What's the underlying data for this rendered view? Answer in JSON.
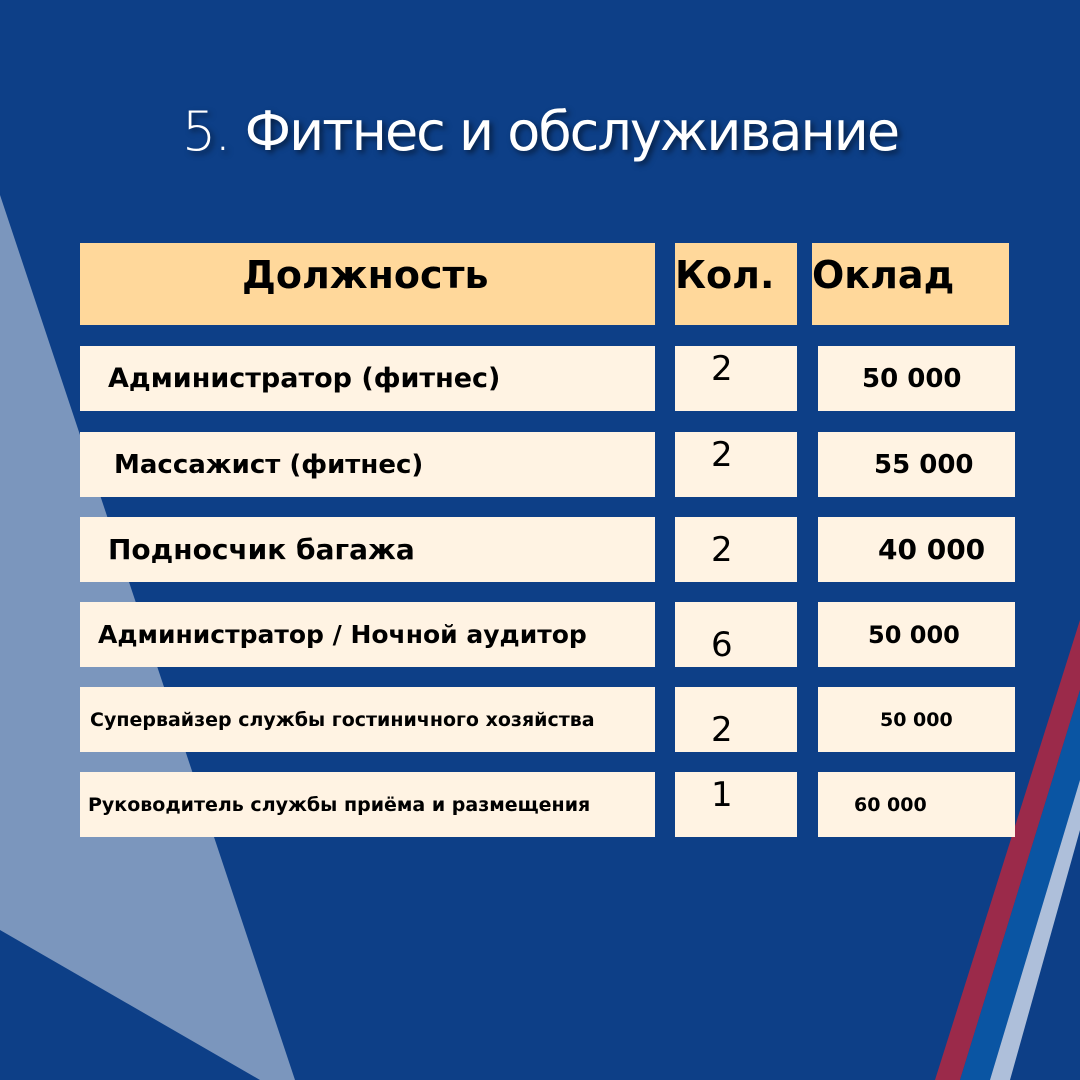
{
  "title": {
    "number": "5.",
    "text": "Фитнес и обслуживание"
  },
  "headers": {
    "position": "Должность",
    "count": "Кол.",
    "salary": "Оклад"
  },
  "rows": [
    {
      "position": "Администратор (фитнес)",
      "count": "2",
      "salary": "50 000"
    },
    {
      "position": "Массажист (фитнес)",
      "count": "2",
      "salary": "55 000"
    },
    {
      "position": "Подносчик багажа",
      "count": "2",
      "salary": "40 000"
    },
    {
      "position": "Администратор / Ночной аудитор",
      "count": "6",
      "salary": "50 000"
    },
    {
      "position": "Супервайзер службы гостиничного хозяйства",
      "count": "2",
      "salary": "50 000"
    },
    {
      "position": "Руководитель службы приёма и размещения",
      "count": "1",
      "salary": "60 000"
    }
  ],
  "colors": {
    "background": "#0d3f87",
    "header": "#ffd89b",
    "row": "#fff3e3",
    "stripe_red": "#9b2a4a",
    "stripe_blue": "#0a55a3",
    "stripe_light": "#aebfda"
  }
}
